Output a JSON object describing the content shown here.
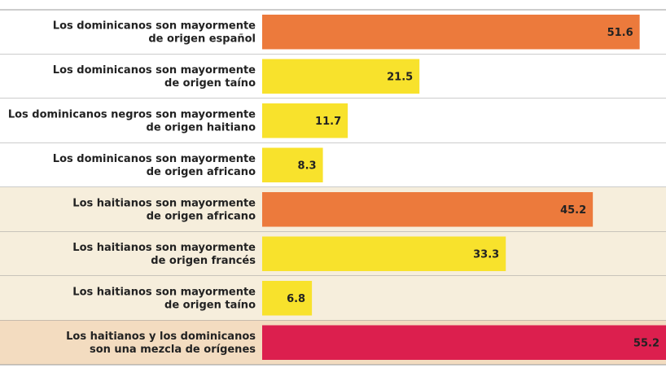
{
  "chart_data": {
    "type": "hbar",
    "categories": [
      "Los dominicanos son mayormente\nde origen español",
      "Los dominicanos son mayormente\nde origen taíno",
      "Los dominicanos negros son mayormente\nde origen haitiano",
      "Los dominicanos son mayormente\nde origen africano",
      "Los haitianos son mayormente\nde origen africano",
      "Los haitianos son mayormente\nde origen francés",
      "Los haitianos son mayormente\nde origen taíno",
      "Los haitianos y los dominicanos\nson una mezcla de orígenes"
    ],
    "values": [
      51.6,
      21.5,
      11.7,
      8.3,
      45.2,
      33.3,
      6.8,
      55.2
    ],
    "colors": [
      "#ec7a3c",
      "#f8e22c",
      "#f8e22c",
      "#f8e22c",
      "#ec7a3c",
      "#f8e22c",
      "#f8e22c",
      "#dc1f4e"
    ]
  }
}
